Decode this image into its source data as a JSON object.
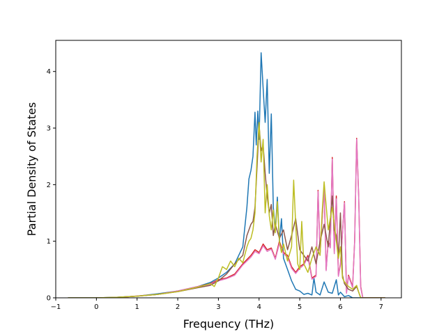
{
  "chart_data": {
    "type": "line",
    "title": "",
    "xlabel": "Frequency (THz)",
    "ylabel": "Partial Density of States",
    "xlim": [
      -1.0,
      7.5
    ],
    "ylim": [
      0,
      4.55
    ],
    "x_ticks": [
      "−1",
      "0",
      "1",
      "2",
      "3",
      "4",
      "5",
      "6",
      "7"
    ],
    "x_tick_values": [
      -1,
      0,
      1,
      2,
      3,
      4,
      5,
      6,
      7
    ],
    "y_ticks": [
      "0",
      "1",
      "2",
      "3",
      "4"
    ],
    "y_tick_values": [
      0,
      1,
      2,
      3,
      4
    ],
    "grid": false,
    "legend": "none",
    "series": [
      {
        "color": "#1f77b4",
        "points": [
          [
            -0.7,
            0
          ],
          [
            0,
            0
          ],
          [
            0.5,
            0.01
          ],
          [
            1,
            0.03
          ],
          [
            1.5,
            0.07
          ],
          [
            2,
            0.12
          ],
          [
            2.5,
            0.2
          ],
          [
            2.8,
            0.27
          ],
          [
            3,
            0.35
          ],
          [
            3.2,
            0.45
          ],
          [
            3.4,
            0.6
          ],
          [
            3.6,
            0.9
          ],
          [
            3.7,
            1.6
          ],
          [
            3.75,
            2.1
          ],
          [
            3.8,
            2.25
          ],
          [
            3.85,
            2.5
          ],
          [
            3.9,
            3.28
          ],
          [
            3.93,
            2.7
          ],
          [
            3.97,
            3.3
          ],
          [
            4.0,
            2.8
          ],
          [
            4.05,
            4.33
          ],
          [
            4.1,
            3.7
          ],
          [
            4.15,
            3.1
          ],
          [
            4.2,
            3.86
          ],
          [
            4.25,
            2.2
          ],
          [
            4.3,
            3.25
          ],
          [
            4.35,
            1.6
          ],
          [
            4.4,
            1.2
          ],
          [
            4.45,
            1.78
          ],
          [
            4.5,
            1.0
          ],
          [
            4.55,
            1.4
          ],
          [
            4.6,
            0.7
          ],
          [
            4.7,
            0.5
          ],
          [
            4.8,
            0.3
          ],
          [
            4.9,
            0.15
          ],
          [
            5.0,
            0.12
          ],
          [
            5.1,
            0.06
          ],
          [
            5.2,
            0.08
          ],
          [
            5.3,
            0.05
          ],
          [
            5.35,
            0.35
          ],
          [
            5.4,
            0.1
          ],
          [
            5.5,
            0.05
          ],
          [
            5.6,
            0.28
          ],
          [
            5.7,
            0.1
          ],
          [
            5.8,
            0.08
          ],
          [
            5.9,
            0.32
          ],
          [
            5.95,
            0.05
          ],
          [
            6.0,
            0.1
          ],
          [
            6.1,
            0.02
          ],
          [
            6.2,
            0.04
          ],
          [
            6.3,
            0
          ],
          [
            6.5,
            0
          ],
          [
            7.1,
            0
          ]
        ]
      },
      {
        "color": "#d62728",
        "points": [
          [
            0.3,
            0
          ],
          [
            0.8,
            0.02
          ],
          [
            1.5,
            0.06
          ],
          [
            2,
            0.12
          ],
          [
            2.5,
            0.2
          ],
          [
            2.8,
            0.25
          ],
          [
            3,
            0.32
          ],
          [
            3.2,
            0.35
          ],
          [
            3.4,
            0.42
          ],
          [
            3.6,
            0.6
          ],
          [
            3.8,
            0.75
          ],
          [
            3.9,
            0.85
          ],
          [
            4.0,
            0.8
          ],
          [
            4.1,
            0.95
          ],
          [
            4.2,
            0.85
          ],
          [
            4.3,
            0.88
          ],
          [
            4.4,
            0.7
          ],
          [
            4.5,
            1.0
          ],
          [
            4.6,
            0.8
          ],
          [
            4.7,
            0.75
          ],
          [
            4.8,
            0.55
          ],
          [
            4.9,
            0.45
          ],
          [
            5.0,
            0.55
          ],
          [
            5.1,
            0.6
          ],
          [
            5.2,
            0.75
          ],
          [
            5.3,
            0.35
          ],
          [
            5.4,
            0.4
          ],
          [
            5.45,
            1.9
          ],
          [
            5.5,
            0.8
          ],
          [
            5.6,
            1.95
          ],
          [
            5.65,
            0.5
          ],
          [
            5.7,
            1.0
          ],
          [
            5.75,
            0.9
          ],
          [
            5.8,
            2.48
          ],
          [
            5.85,
            0.8
          ],
          [
            5.9,
            1.8
          ],
          [
            5.95,
            0.4
          ],
          [
            6.0,
            0.6
          ],
          [
            6.1,
            1.7
          ],
          [
            6.15,
            0.1
          ],
          [
            6.2,
            0.4
          ],
          [
            6.3,
            0.2
          ],
          [
            6.35,
            1.0
          ],
          [
            6.4,
            2.82
          ],
          [
            6.45,
            1.8
          ],
          [
            6.5,
            0.2
          ],
          [
            6.55,
            0
          ],
          [
            7.1,
            0
          ]
        ]
      },
      {
        "color": "#e377c2",
        "points": [
          [
            0.3,
            0
          ],
          [
            0.8,
            0.02
          ],
          [
            1.5,
            0.06
          ],
          [
            2,
            0.12
          ],
          [
            2.5,
            0.2
          ],
          [
            2.8,
            0.24
          ],
          [
            3,
            0.3
          ],
          [
            3.2,
            0.34
          ],
          [
            3.4,
            0.4
          ],
          [
            3.6,
            0.58
          ],
          [
            3.8,
            0.72
          ],
          [
            3.9,
            0.82
          ],
          [
            4.0,
            0.78
          ],
          [
            4.1,
            0.92
          ],
          [
            4.2,
            0.82
          ],
          [
            4.3,
            0.86
          ],
          [
            4.4,
            0.68
          ],
          [
            4.5,
            0.96
          ],
          [
            4.6,
            0.78
          ],
          [
            4.7,
            0.72
          ],
          [
            4.8,
            0.52
          ],
          [
            4.9,
            0.43
          ],
          [
            5.0,
            0.52
          ],
          [
            5.1,
            0.58
          ],
          [
            5.2,
            0.72
          ],
          [
            5.3,
            0.33
          ],
          [
            5.4,
            0.38
          ],
          [
            5.45,
            1.88
          ],
          [
            5.5,
            0.78
          ],
          [
            5.6,
            1.92
          ],
          [
            5.65,
            0.48
          ],
          [
            5.7,
            0.98
          ],
          [
            5.75,
            0.88
          ],
          [
            5.8,
            2.45
          ],
          [
            5.85,
            0.78
          ],
          [
            5.9,
            1.75
          ],
          [
            5.95,
            0.38
          ],
          [
            6.0,
            0.58
          ],
          [
            6.1,
            1.68
          ],
          [
            6.15,
            0.08
          ],
          [
            6.2,
            0.38
          ],
          [
            6.3,
            0.18
          ],
          [
            6.35,
            0.98
          ],
          [
            6.4,
            2.8
          ],
          [
            6.45,
            1.78
          ],
          [
            6.5,
            0.18
          ],
          [
            6.55,
            0
          ],
          [
            7.1,
            0
          ]
        ]
      },
      {
        "color": "#8c564b",
        "points": [
          [
            -0.7,
            0
          ],
          [
            0,
            0
          ],
          [
            0.5,
            0.01
          ],
          [
            1,
            0.03
          ],
          [
            1.5,
            0.06
          ],
          [
            2,
            0.11
          ],
          [
            2.5,
            0.18
          ],
          [
            2.8,
            0.22
          ],
          [
            3,
            0.3
          ],
          [
            3.2,
            0.42
          ],
          [
            3.4,
            0.6
          ],
          [
            3.6,
            0.75
          ],
          [
            3.7,
            1.1
          ],
          [
            3.8,
            1.3
          ],
          [
            3.85,
            1.35
          ],
          [
            3.9,
            1.6
          ],
          [
            3.95,
            2.3
          ],
          [
            4.0,
            3.05
          ],
          [
            4.05,
            2.6
          ],
          [
            4.1,
            2.7
          ],
          [
            4.15,
            2.2
          ],
          [
            4.2,
            1.8
          ],
          [
            4.25,
            1.5
          ],
          [
            4.3,
            1.65
          ],
          [
            4.35,
            1.1
          ],
          [
            4.4,
            1.3
          ],
          [
            4.5,
            1.05
          ],
          [
            4.6,
            1.2
          ],
          [
            4.7,
            0.85
          ],
          [
            4.8,
            1.1
          ],
          [
            4.9,
            1.4
          ],
          [
            5.0,
            0.85
          ],
          [
            5.1,
            0.75
          ],
          [
            5.2,
            0.65
          ],
          [
            5.3,
            0.9
          ],
          [
            5.4,
            0.6
          ],
          [
            5.5,
            1.0
          ],
          [
            5.6,
            1.3
          ],
          [
            5.7,
            0.9
          ],
          [
            5.8,
            1.8
          ],
          [
            5.85,
            1.2
          ],
          [
            5.9,
            1.1
          ],
          [
            5.95,
            0.7
          ],
          [
            6.0,
            1.5
          ],
          [
            6.05,
            0.4
          ],
          [
            6.1,
            0.25
          ],
          [
            6.2,
            0.15
          ],
          [
            6.3,
            0.12
          ],
          [
            6.4,
            0.2
          ],
          [
            6.45,
            0.1
          ],
          [
            6.5,
            0
          ],
          [
            7.1,
            0
          ]
        ]
      },
      {
        "color": "#bcbd22",
        "points": [
          [
            -0.7,
            0
          ],
          [
            0,
            0
          ],
          [
            0.5,
            0.01
          ],
          [
            1,
            0.03
          ],
          [
            1.5,
            0.06
          ],
          [
            2,
            0.11
          ],
          [
            2.5,
            0.19
          ],
          [
            2.8,
            0.25
          ],
          [
            2.9,
            0.2
          ],
          [
            3,
            0.35
          ],
          [
            3.1,
            0.55
          ],
          [
            3.2,
            0.5
          ],
          [
            3.3,
            0.65
          ],
          [
            3.4,
            0.55
          ],
          [
            3.5,
            0.7
          ],
          [
            3.6,
            0.62
          ],
          [
            3.7,
            0.9
          ],
          [
            3.75,
            1.0
          ],
          [
            3.8,
            1.05
          ],
          [
            3.85,
            1.2
          ],
          [
            3.9,
            1.5
          ],
          [
            3.95,
            2.5
          ],
          [
            4.0,
            3.1
          ],
          [
            4.05,
            2.4
          ],
          [
            4.1,
            2.8
          ],
          [
            4.15,
            1.5
          ],
          [
            4.2,
            2.0
          ],
          [
            4.25,
            1.45
          ],
          [
            4.3,
            1.2
          ],
          [
            4.35,
            1.55
          ],
          [
            4.4,
            1.15
          ],
          [
            4.45,
            1.7
          ],
          [
            4.5,
            1.0
          ],
          [
            4.55,
            0.8
          ],
          [
            4.6,
            0.95
          ],
          [
            4.7,
            0.65
          ],
          [
            4.8,
            0.9
          ],
          [
            4.85,
            2.08
          ],
          [
            4.9,
            1.3
          ],
          [
            4.95,
            0.6
          ],
          [
            5.0,
            0.5
          ],
          [
            5.05,
            1.35
          ],
          [
            5.1,
            0.6
          ],
          [
            5.2,
            0.45
          ],
          [
            5.3,
            0.7
          ],
          [
            5.4,
            0.9
          ],
          [
            5.5,
            0.75
          ],
          [
            5.55,
            1.5
          ],
          [
            5.6,
            2.05
          ],
          [
            5.7,
            1.2
          ],
          [
            5.8,
            1.6
          ],
          [
            5.85,
            1.3
          ],
          [
            5.9,
            1.0
          ],
          [
            5.95,
            0.7
          ],
          [
            6.0,
            0.9
          ],
          [
            6.05,
            0.35
          ],
          [
            6.1,
            0.28
          ],
          [
            6.2,
            0.2
          ],
          [
            6.3,
            0.15
          ],
          [
            6.4,
            0.22
          ],
          [
            6.45,
            0.1
          ],
          [
            6.5,
            0
          ],
          [
            7.1,
            0
          ]
        ]
      }
    ]
  }
}
